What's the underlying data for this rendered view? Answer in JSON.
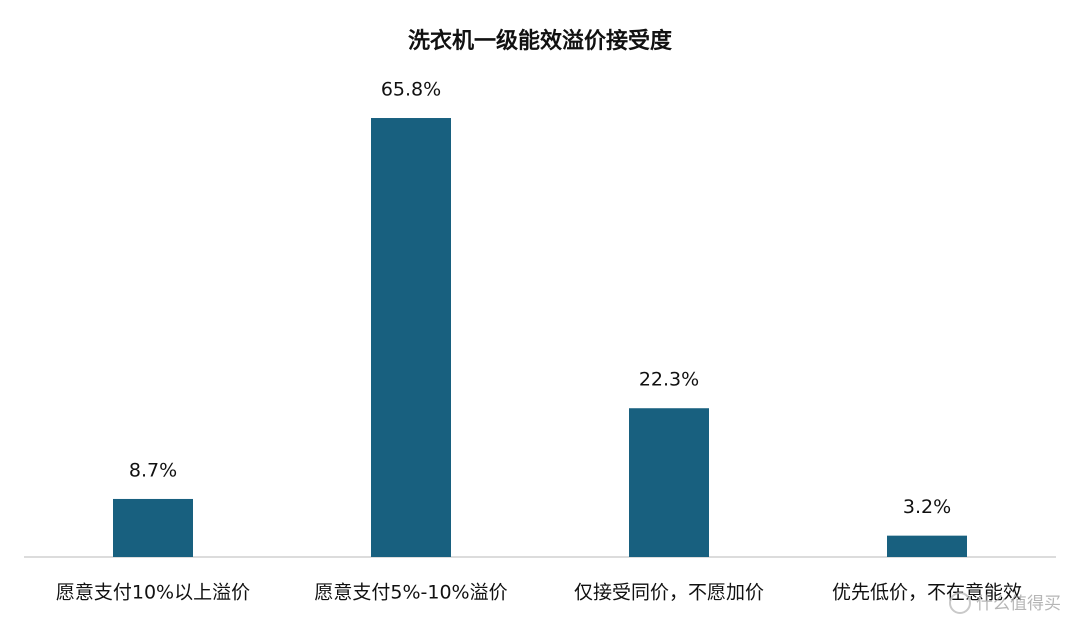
{
  "chart_data": {
    "type": "bar",
    "title": "洗衣机一级能效溢价接受度",
    "categories": [
      "愿意支付10%以上溢价",
      "愿意支付5%-10%溢价",
      "仅接受同价，不愿加价",
      "优先低价，不在意能效"
    ],
    "values": [
      8.7,
      65.8,
      22.3,
      3.2
    ],
    "value_labels": [
      "8.7%",
      "65.8%",
      "22.3%",
      "3.2%"
    ],
    "color": "#18607f",
    "ylim": [
      0,
      70
    ],
    "watermark": "什么值得买"
  }
}
